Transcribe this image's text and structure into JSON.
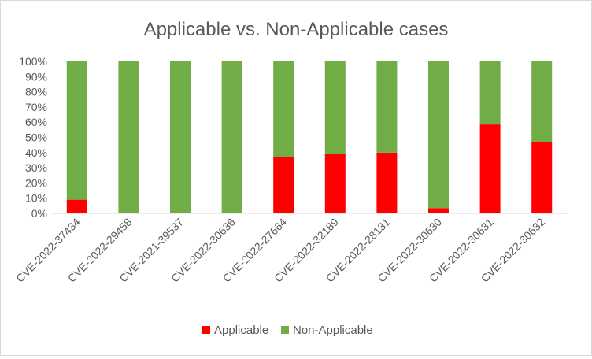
{
  "chart_data": {
    "type": "bar",
    "stacked": true,
    "title": "Applicable vs. Non-Applicable cases",
    "xlabel": "",
    "ylabel": "",
    "categories": [
      "CVE-2022-37434",
      "CVE-2022-29458",
      "CVE-2021-39537",
      "CVE-2022-30636",
      "CVE-2022-27664",
      "CVE-2022-32189",
      "CVE-2022-28131",
      "CVE-2022-30630",
      "CVE-2022-30631",
      "CVE-2022-30632"
    ],
    "series": [
      {
        "name": "Applicable",
        "color": "#ff0000",
        "values": [
          9,
          0,
          0,
          0,
          37,
          39,
          40,
          3.5,
          58.5,
          47
        ]
      },
      {
        "name": "Non-Applicable",
        "color": "#70ad47",
        "values": [
          91,
          100,
          100,
          100,
          63,
          61,
          60,
          96.5,
          41.5,
          53
        ]
      }
    ],
    "ylim": [
      0,
      100
    ],
    "yticks": [
      "0%",
      "10%",
      "20%",
      "30%",
      "40%",
      "50%",
      "60%",
      "70%",
      "80%",
      "90%",
      "100%"
    ],
    "grid": false,
    "legend": "bottom"
  }
}
